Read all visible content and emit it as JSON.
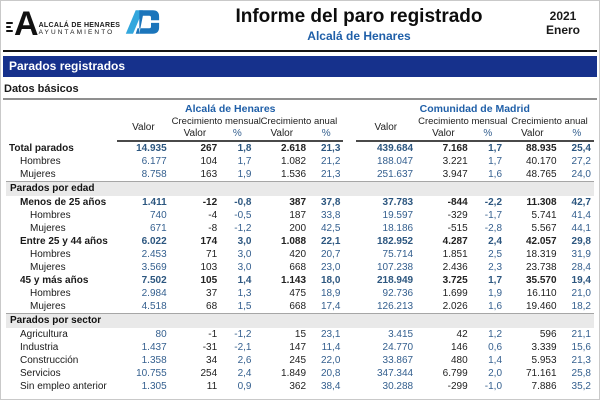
{
  "colors": {
    "navy_bar": "#16318C",
    "accent_blue": "#1F5FA8",
    "value_blue": "#35608F",
    "band_gray": "#E9E9E9",
    "logo_light_blue": "#33A7DD",
    "logo_dark_blue": "#1B75BB"
  },
  "header": {
    "logo": {
      "icon": "ayuntamiento-A-logo",
      "ad_icon": "AD-monogram-logo",
      "org_name": "ALCALÁ DE HENARES",
      "org_sub": "AYUNTAMIENTO"
    },
    "title": "Informe del paro registrado",
    "subtitle": "Alcalá de Henares",
    "period": {
      "year": "2021",
      "month": "Enero"
    }
  },
  "section_bar": {
    "label": "Parados registrados"
  },
  "subsection": {
    "label": "Datos básicos"
  },
  "table": {
    "regions": [
      "Alcalá de Henares",
      "Comunidad de Madrid"
    ],
    "headers": {
      "valor": "Valor",
      "crec_mensual": "Crecimiento mensual",
      "crec_anual": "Crecimiento anual",
      "pct": "%"
    },
    "sections": [
      {
        "title": null,
        "rows": [
          {
            "label": "Total parados",
            "bold": true,
            "indent": 0,
            "values": [
              "14.935",
              "267",
              "1,8",
              "2.618",
              "21,3",
              "439.684",
              "7.168",
              "1,7",
              "88.935",
              "25,4"
            ]
          },
          {
            "label": "Hombres",
            "bold": false,
            "indent": 1,
            "values": [
              "6.177",
              "104",
              "1,7",
              "1.082",
              "21,2",
              "188.047",
              "3.221",
              "1,7",
              "40.170",
              "27,2"
            ]
          },
          {
            "label": "Mujeres",
            "bold": false,
            "indent": 1,
            "values": [
              "8.758",
              "163",
              "1,9",
              "1.536",
              "21,3",
              "251.637",
              "3.947",
              "1,6",
              "48.765",
              "24,0"
            ]
          }
        ]
      },
      {
        "title": "Parados por edad",
        "rows": [
          {
            "label": "Menos de 25 años",
            "bold": true,
            "indent": 1,
            "values": [
              "1.411",
              "-12",
              "-0,8",
              "387",
              "37,8",
              "37.783",
              "-844",
              "-2,2",
              "11.308",
              "42,7"
            ]
          },
          {
            "label": "Hombres",
            "bold": false,
            "indent": 2,
            "values": [
              "740",
              "-4",
              "-0,5",
              "187",
              "33,8",
              "19.597",
              "-329",
              "-1,7",
              "5.741",
              "41,4"
            ]
          },
          {
            "label": "Mujeres",
            "bold": false,
            "indent": 2,
            "values": [
              "671",
              "-8",
              "-1,2",
              "200",
              "42,5",
              "18.186",
              "-515",
              "-2,8",
              "5.567",
              "44,1"
            ]
          },
          {
            "label": "Entre 25 y 44 años",
            "bold": true,
            "indent": 1,
            "values": [
              "6.022",
              "174",
              "3,0",
              "1.088",
              "22,1",
              "182.952",
              "4.287",
              "2,4",
              "42.057",
              "29,8"
            ]
          },
          {
            "label": "Hombres",
            "bold": false,
            "indent": 2,
            "values": [
              "2.453",
              "71",
              "3,0",
              "420",
              "20,7",
              "75.714",
              "1.851",
              "2,5",
              "18.319",
              "31,9"
            ]
          },
          {
            "label": "Mujeres",
            "bold": false,
            "indent": 2,
            "values": [
              "3.569",
              "103",
              "3,0",
              "668",
              "23,0",
              "107.238",
              "2.436",
              "2,3",
              "23.738",
              "28,4"
            ]
          },
          {
            "label": "45 y más años",
            "bold": true,
            "indent": 1,
            "values": [
              "7.502",
              "105",
              "1,4",
              "1.143",
              "18,0",
              "218.949",
              "3.725",
              "1,7",
              "35.570",
              "19,4"
            ]
          },
          {
            "label": "Hombres",
            "bold": false,
            "indent": 2,
            "values": [
              "2.984",
              "37",
              "1,3",
              "475",
              "18,9",
              "92.736",
              "1.699",
              "1,9",
              "16.110",
              "21,0"
            ]
          },
          {
            "label": "Mujeres",
            "bold": false,
            "indent": 2,
            "values": [
              "4.518",
              "68",
              "1,5",
              "668",
              "17,4",
              "126.213",
              "2.026",
              "1,6",
              "19.460",
              "18,2"
            ]
          }
        ]
      },
      {
        "title": "Parados por sector",
        "rows": [
          {
            "label": "Agricultura",
            "bold": false,
            "indent": 1,
            "values": [
              "80",
              "-1",
              "-1,2",
              "15",
              "23,1",
              "3.415",
              "42",
              "1,2",
              "596",
              "21,1"
            ]
          },
          {
            "label": "Industria",
            "bold": false,
            "indent": 1,
            "values": [
              "1.437",
              "-31",
              "-2,1",
              "147",
              "11,4",
              "24.770",
              "146",
              "0,6",
              "3.339",
              "15,6"
            ]
          },
          {
            "label": "Construcción",
            "bold": false,
            "indent": 1,
            "values": [
              "1.358",
              "34",
              "2,6",
              "245",
              "22,0",
              "33.867",
              "480",
              "1,4",
              "5.953",
              "21,3"
            ]
          },
          {
            "label": "Servicios",
            "bold": false,
            "indent": 1,
            "values": [
              "10.755",
              "254",
              "2,4",
              "1.849",
              "20,8",
              "347.344",
              "6.799",
              "2,0",
              "71.161",
              "25,8"
            ]
          },
          {
            "label": "Sin empleo anterior",
            "bold": false,
            "indent": 1,
            "values": [
              "1.305",
              "11",
              "0,9",
              "362",
              "38,4",
              "30.288",
              "-299",
              "-1,0",
              "7.886",
              "35,2"
            ]
          }
        ]
      }
    ]
  }
}
